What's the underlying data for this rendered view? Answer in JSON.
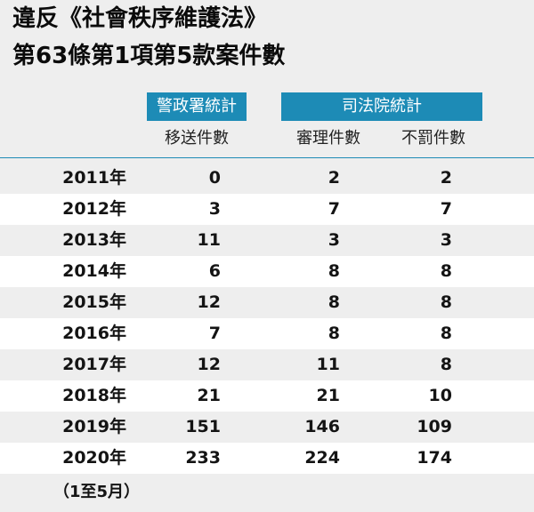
{
  "title_line1": "違反《社會秩序維護法》",
  "title_line2": "第63條第1項第5款案件數",
  "group_headers": {
    "police": "警政署統計",
    "court": "司法院統計"
  },
  "columns": {
    "police_referred": "移送件數",
    "court_tried": "審理件數",
    "court_not_penalized": "不罰件數"
  },
  "colors": {
    "header_blue": "#1d8bb6",
    "background": "#eeeeee",
    "row_alt": "#ffffff"
  },
  "chart_data": {
    "type": "table",
    "title": "違反《社會秩序維護法》第63條第1項第5款案件數",
    "columns": [
      "移送件數",
      "審理件數",
      "不罰件數"
    ],
    "rows": [
      {
        "year": "2011年",
        "police_referred": "0",
        "court_tried": "2",
        "court_not_penalized": "2"
      },
      {
        "year": "2012年",
        "police_referred": "3",
        "court_tried": "7",
        "court_not_penalized": "7"
      },
      {
        "year": "2013年",
        "police_referred": "11",
        "court_tried": "3",
        "court_not_penalized": "3"
      },
      {
        "year": "2014年",
        "police_referred": "6",
        "court_tried": "8",
        "court_not_penalized": "8"
      },
      {
        "year": "2015年",
        "police_referred": "12",
        "court_tried": "8",
        "court_not_penalized": "8"
      },
      {
        "year": "2016年",
        "police_referred": "7",
        "court_tried": "8",
        "court_not_penalized": "8"
      },
      {
        "year": "2017年",
        "police_referred": "12",
        "court_tried": "11",
        "court_not_penalized": "8"
      },
      {
        "year": "2018年",
        "police_referred": "21",
        "court_tried": "21",
        "court_not_penalized": "10"
      },
      {
        "year": "2019年",
        "police_referred": "151",
        "court_tried": "146",
        "court_not_penalized": "109"
      },
      {
        "year": "2020年",
        "police_referred": "233",
        "court_tried": "224",
        "court_not_penalized": "174"
      }
    ],
    "year_note": "（1至5月）"
  }
}
